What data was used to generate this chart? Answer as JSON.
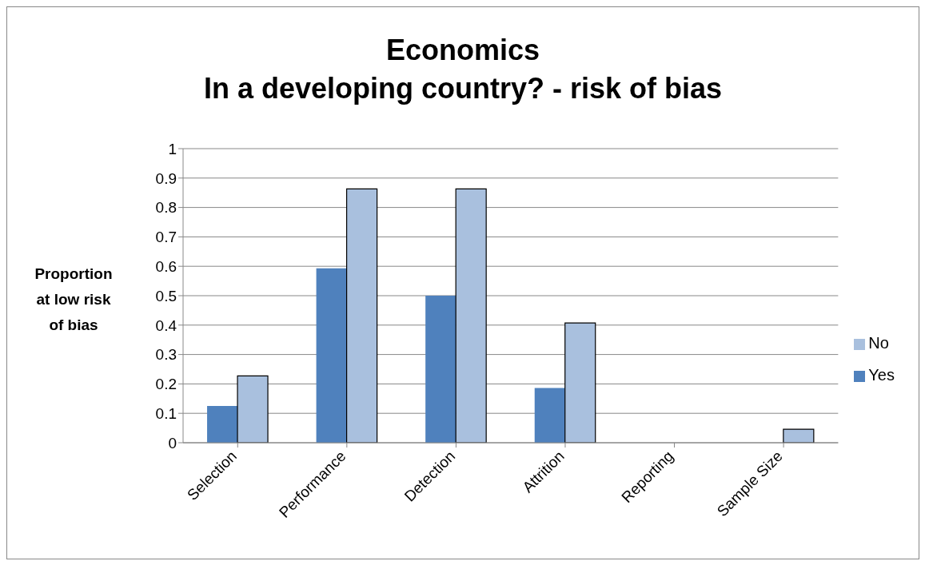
{
  "chart_data": {
    "type": "bar",
    "title": "Economics\nIn a developing country? - risk of bias",
    "ylabel": "Proportion at low risk of bias",
    "categories": [
      "Selection",
      "Performance",
      "Detection",
      "Attrition",
      "Reporting",
      "Sample Size"
    ],
    "series": [
      {
        "name": "Yes",
        "color": "#4f81bd",
        "values": [
          0.125,
          0.593,
          0.5,
          0.186,
          0,
          0
        ]
      },
      {
        "name": "No",
        "color": "#a9c0de",
        "values": [
          0.227,
          0.863,
          0.863,
          0.407,
          0,
          0.046
        ]
      }
    ],
    "ylim": [
      0,
      1
    ],
    "yticks": [
      0,
      0.1,
      0.2,
      0.3,
      0.4,
      0.5,
      0.6,
      0.7,
      0.8,
      0.9,
      1
    ],
    "grid": "y",
    "legend": "right"
  }
}
